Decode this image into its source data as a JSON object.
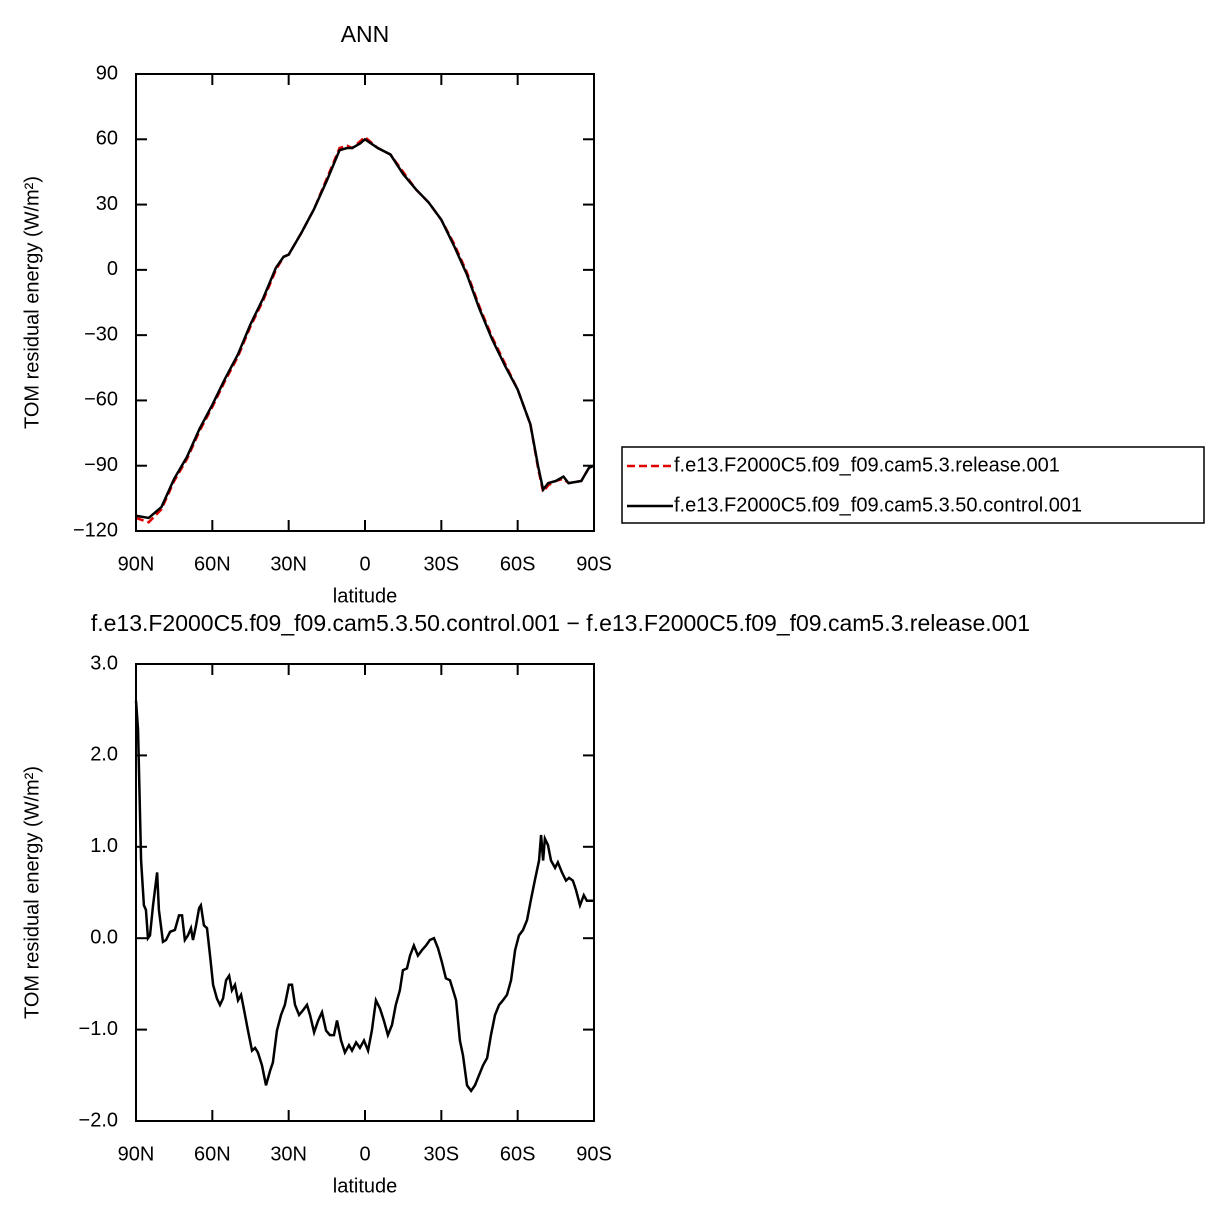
{
  "chart_data": [
    {
      "type": "line",
      "title": "ANN",
      "xlabel": "latitude",
      "ylabel": "TOM residual energy (W/m²)",
      "x": [
        90,
        85,
        80,
        75,
        70,
        65,
        60,
        55,
        50,
        45,
        40,
        35,
        32,
        30,
        25,
        20,
        15,
        10,
        7,
        5,
        2,
        0,
        -5,
        -10,
        -15,
        -20,
        -25,
        -30,
        -35,
        -40,
        -45,
        -50,
        -55,
        -60,
        -65,
        -68,
        -70,
        -72,
        -75,
        -78,
        -80,
        -85,
        -88,
        -90
      ],
      "series": [
        {
          "name": "f.e13.F2000C5.f09_f09.cam5.3.release.001",
          "color": "#e00000",
          "linestyle": "dashed",
          "values": [
            -114,
            -116,
            -110,
            -97,
            -87,
            -74,
            -63,
            -51,
            -40,
            -26,
            -14,
            0,
            6,
            7,
            17,
            28,
            42,
            56,
            57,
            56,
            59,
            61,
            56,
            53,
            45,
            37,
            31,
            23,
            12,
            -1,
            -17,
            -31,
            -43,
            -55,
            -71,
            -91,
            -102,
            -99,
            -97,
            -96,
            -98,
            -97,
            -91,
            -90
          ]
        },
        {
          "name": "f.e13.F2000C5.f09_f09.cam5.3.50.control.001",
          "color": "#000000",
          "linestyle": "solid",
          "values": [
            -113,
            -114,
            -109,
            -96,
            -86,
            -73,
            -62,
            -50,
            -39,
            -25,
            -13,
            1,
            6,
            7,
            17,
            28,
            41,
            55,
            56,
            56,
            58,
            60,
            56,
            53,
            44,
            37,
            31,
            23,
            11,
            -2,
            -18,
            -32,
            -44,
            -55,
            -71,
            -90,
            -101,
            -98,
            -97,
            -95,
            -98,
            -97,
            -91,
            -90
          ]
        }
      ],
      "xlim": [
        90,
        -90
      ],
      "xticks": [
        {
          "value": 90,
          "label": "90N"
        },
        {
          "value": 60,
          "label": "60N"
        },
        {
          "value": 30,
          "label": "30N"
        },
        0,
        {
          "value": -30,
          "label": "30S"
        },
        {
          "value": -60,
          "label": "60S"
        },
        {
          "value": -90,
          "label": "90S"
        }
      ],
      "ylim": [
        -120,
        90
      ],
      "yticks": [
        90,
        60,
        30,
        0,
        {
          "value": -30,
          "label": "−30"
        },
        {
          "value": -60,
          "label": "−60"
        },
        {
          "value": -90,
          "label": "−90"
        },
        {
          "value": -120,
          "label": "−120"
        }
      ],
      "legend": "right",
      "grid": false
    },
    {
      "type": "line",
      "title": "f.e13.F2000C5.f09_f09.cam5.3.50.control.001 − f.e13.F2000C5.f09_f09.cam5.3.release.001",
      "xlabel": "latitude",
      "ylabel": "TOM residual energy (W/m²)",
      "x": [
        90,
        89.2,
        88,
        86.9,
        86.1,
        85.3,
        84.5,
        83.3,
        81.7,
        81,
        79.4,
        78.2,
        76.6,
        74.7,
        73.1,
        71.9,
        70.8,
        69.6,
        68.4,
        67.6,
        66.4,
        65.2,
        64.5,
        63.3,
        62.1,
        60.9,
        59.7,
        58.2,
        57,
        55.8,
        54.6,
        53.4,
        52.3,
        51.1,
        49.9,
        48.7,
        47.5,
        46,
        44.4,
        43.2,
        42.1,
        40.5,
        38.9,
        37.3,
        36.2,
        34.6,
        33,
        31.5,
        29.9,
        28.7,
        27.5,
        25.9,
        24.4,
        22.8,
        21.6,
        20,
        18.4,
        16.9,
        15.3,
        13.8,
        12.2,
        11,
        9.4,
        7.9,
        6.3,
        5.1,
        3.5,
        2,
        0.4,
        -1.2,
        -2.7,
        -4.3,
        -5.9,
        -7.4,
        -9,
        -10.6,
        -12.1,
        -13.7,
        -14.9,
        -16.5,
        -17.7,
        -19.2,
        -20.8,
        -22.4,
        -24,
        -25.5,
        -27.1,
        -28.7,
        -30.2,
        -31.8,
        -33.4,
        -34.6,
        -35.8,
        -37.3,
        -38.5,
        -40.1,
        -41.7,
        -43.2,
        -44.8,
        -46.4,
        -48,
        -49.5,
        -51.1,
        -52.7,
        -54.2,
        -55.8,
        -57.4,
        -59,
        -60.5,
        -62.1,
        -63.7,
        -65.2,
        -66.8,
        -68.4,
        -69.2,
        -70,
        -70.7,
        -71.9,
        -73.1,
        -74.7,
        -75.8,
        -77.4,
        -79,
        -80.2,
        -81.7,
        -82.9,
        -84.5,
        -86,
        -87.2,
        -88.4,
        -90
      ],
      "series": [
        {
          "color": "#000000",
          "linestyle": "solid",
          "values": [
            2.6,
            2.28,
            0.85,
            0.36,
            0.31,
            0,
            0.03,
            0.36,
            0.72,
            0.31,
            -0.04,
            -0.02,
            0.07,
            0.09,
            0.25,
            0.25,
            -0.02,
            0.03,
            0.11,
            -0.02,
            0.14,
            0.33,
            0.36,
            0.14,
            0.11,
            -0.19,
            -0.51,
            -0.66,
            -0.73,
            -0.66,
            -0.46,
            -0.41,
            -0.57,
            -0.51,
            -0.68,
            -0.62,
            -0.79,
            -1.01,
            -1.23,
            -1.2,
            -1.25,
            -1.39,
            -1.61,
            -1.45,
            -1.36,
            -1.01,
            -0.84,
            -0.73,
            -0.51,
            -0.51,
            -0.73,
            -0.84,
            -0.79,
            -0.73,
            -0.84,
            -1.03,
            -0.9,
            -0.81,
            -1.01,
            -1.06,
            -1.06,
            -0.9,
            -1.12,
            -1.25,
            -1.17,
            -1.23,
            -1.14,
            -1.2,
            -1.12,
            -1.23,
            -1.01,
            -0.68,
            -0.77,
            -0.9,
            -1.06,
            -0.95,
            -0.73,
            -0.57,
            -0.35,
            -0.33,
            -0.19,
            -0.08,
            -0.19,
            -0.13,
            -0.08,
            -0.02,
            0,
            -0.11,
            -0.26,
            -0.44,
            -0.46,
            -0.57,
            -0.68,
            -1.12,
            -1.28,
            -1.61,
            -1.67,
            -1.61,
            -1.5,
            -1.39,
            -1.31,
            -1.06,
            -0.84,
            -0.73,
            -0.68,
            -0.62,
            -0.46,
            -0.13,
            0.03,
            0.09,
            0.2,
            0.42,
            0.64,
            0.85,
            1.13,
            0.85,
            1.09,
            1.02,
            0.85,
            0.77,
            0.83,
            0.72,
            0.63,
            0.66,
            0.63,
            0.53,
            0.36,
            0.47,
            0.41,
            0.41,
            0.41
          ]
        }
      ],
      "xlim": [
        90,
        -90
      ],
      "xticks": [
        {
          "value": 90,
          "label": "90N"
        },
        {
          "value": 60,
          "label": "60N"
        },
        {
          "value": 30,
          "label": "30N"
        },
        0,
        {
          "value": -30,
          "label": "30S"
        },
        {
          "value": -60,
          "label": "60S"
        },
        {
          "value": -90,
          "label": "90S"
        }
      ],
      "ylim": [
        -2,
        3
      ],
      "yticks": [
        {
          "value": 3,
          "label": "3.0"
        },
        {
          "value": 2,
          "label": "2.0"
        },
        {
          "value": 1,
          "label": "1.0"
        },
        {
          "value": 0,
          "label": "0.0"
        },
        {
          "value": -1,
          "label": "−1.0"
        },
        {
          "value": -2,
          "label": "−2.0"
        }
      ],
      "grid": false
    }
  ]
}
